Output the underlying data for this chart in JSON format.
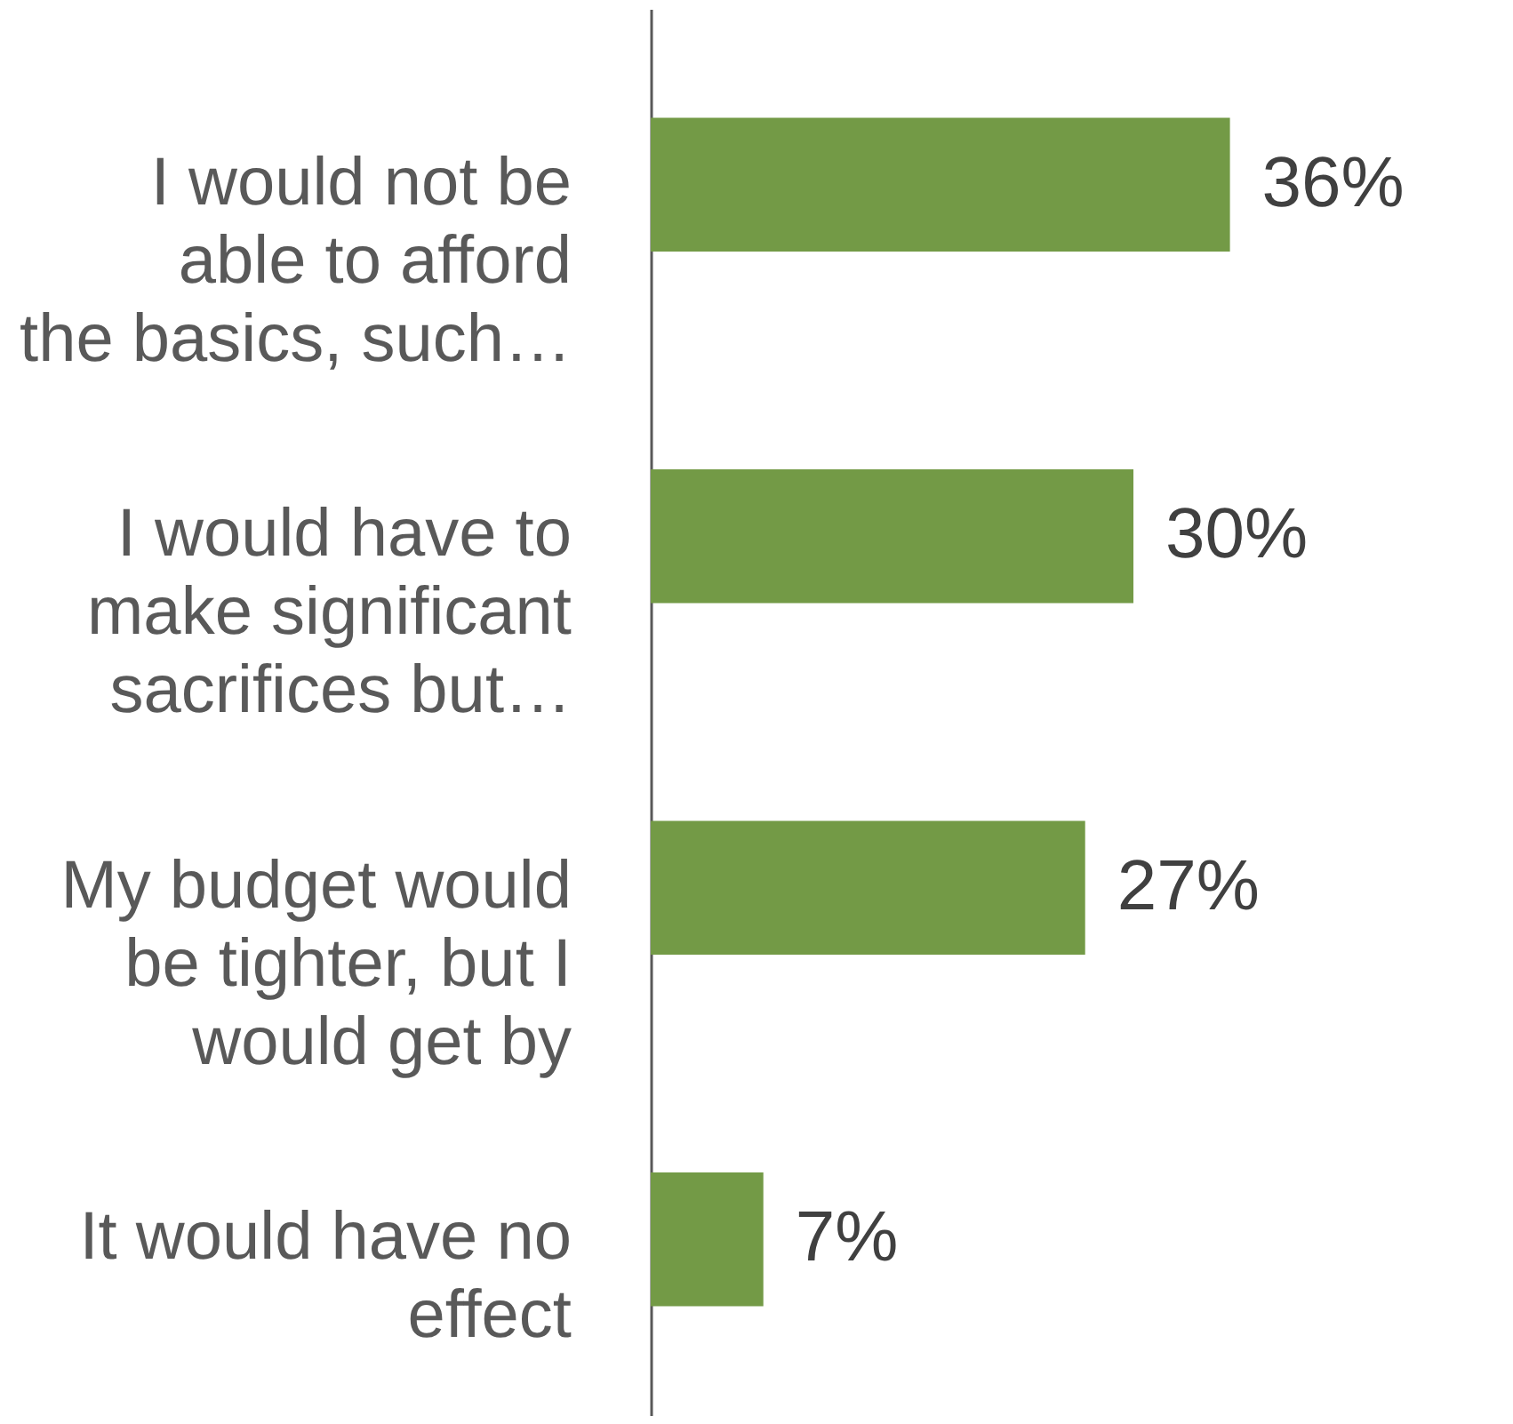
{
  "chart_data": {
    "type": "bar",
    "orientation": "horizontal",
    "categories": [
      "I would not be able to afford the basics, such…",
      "I would have to make significant sacrifices but…",
      "My budget would be tighter, but I would get by",
      "It would have no effect"
    ],
    "values": [
      36,
      30,
      27,
      7
    ],
    "color": "#739a46",
    "value_labels": [
      "36%",
      "30%",
      "27%",
      "7%"
    ],
    "tick_labels": "y"
  }
}
